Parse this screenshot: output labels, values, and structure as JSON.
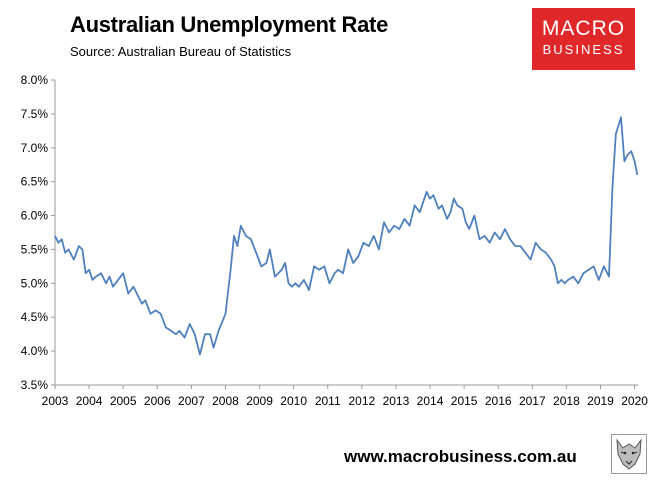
{
  "title": "Australian Unemployment Rate",
  "subtitle": "Source: Australian Bureau of Statistics",
  "logo": {
    "line1": "MACRO",
    "line2": "BUSINESS"
  },
  "footer_url": "www.macrobusiness.com.au",
  "colors": {
    "line": "#4f81bd",
    "logo_bg": "#e0282b"
  },
  "chart_data": {
    "type": "line",
    "title": "Australian Unemployment Rate",
    "xlabel": "",
    "ylabel": "",
    "xlim": [
      2003,
      2020.1
    ],
    "ylim": [
      3.5,
      8.0
    ],
    "y_ticks": [
      3.5,
      4.0,
      4.5,
      5.0,
      5.5,
      6.0,
      6.5,
      7.0,
      7.5,
      8.0
    ],
    "y_tick_labels": [
      "3.5%",
      "4.0%",
      "4.5%",
      "5.0%",
      "5.5%",
      "6.0%",
      "6.5%",
      "7.0%",
      "7.5%",
      "8.0%"
    ],
    "x_ticks": [
      2003,
      2004,
      2005,
      2006,
      2007,
      2008,
      2009,
      2010,
      2011,
      2012,
      2013,
      2014,
      2015,
      2016,
      2017,
      2018,
      2019,
      2020
    ],
    "x_tick_labels": [
      "2003",
      "2004",
      "2005",
      "2006",
      "2007",
      "2008",
      "2009",
      "2010",
      "2011",
      "2012",
      "2013",
      "2014",
      "2015",
      "2016",
      "2017",
      "2018",
      "2019",
      "2020"
    ],
    "grid": false,
    "series": [
      {
        "x": [
          2003.0,
          2003.1,
          2003.2,
          2003.3,
          2003.4,
          2003.55,
          2003.7,
          2003.8,
          2003.9,
          2004.0,
          2004.1,
          2004.2,
          2004.35,
          2004.5,
          2004.6,
          2004.7,
          2004.85,
          2005.0,
          2005.15,
          2005.3,
          2005.45,
          2005.55,
          2005.65,
          2005.8,
          2005.95,
          2006.1,
          2006.25,
          2006.4,
          2006.55,
          2006.65,
          2006.8,
          2006.95,
          2007.1,
          2007.25,
          2007.4,
          2007.55,
          2007.65,
          2007.8,
          2008.0,
          2008.15,
          2008.25,
          2008.35,
          2008.45,
          2008.6,
          2008.75,
          2008.9,
          2009.05,
          2009.2,
          2009.3,
          2009.45,
          2009.55,
          2009.65,
          2009.75,
          2009.85,
          2009.95,
          2010.05,
          2010.15,
          2010.3,
          2010.45,
          2010.6,
          2010.75,
          2010.9,
          2011.05,
          2011.2,
          2011.3,
          2011.45,
          2011.6,
          2011.75,
          2011.9,
          2012.05,
          2012.2,
          2012.35,
          2012.5,
          2012.65,
          2012.8,
          2012.95,
          2013.1,
          2013.25,
          2013.4,
          2013.55,
          2013.7,
          2013.8,
          2013.9,
          2014.0,
          2014.1,
          2014.25,
          2014.35,
          2014.5,
          2014.6,
          2014.7,
          2014.8,
          2014.95,
          2015.05,
          2015.15,
          2015.3,
          2015.45,
          2015.6,
          2015.75,
          2015.9,
          2016.05,
          2016.2,
          2016.35,
          2016.5,
          2016.65,
          2016.8,
          2016.95,
          2017.1,
          2017.25,
          2017.4,
          2017.55,
          2017.65,
          2017.75,
          2017.85,
          2017.95,
          2018.05,
          2018.2,
          2018.35,
          2018.5,
          2018.65,
          2018.8,
          2018.95,
          2019.1,
          2019.25,
          2019.35,
          2019.45,
          2019.6,
          2019.7,
          2019.8,
          2019.9,
          2020.0,
          2020.08
        ],
        "y": [
          5.7,
          5.6,
          5.65,
          5.45,
          5.5,
          5.35,
          5.55,
          5.5,
          5.15,
          5.2,
          5.05,
          5.1,
          5.15,
          5.0,
          5.1,
          4.95,
          5.05,
          5.15,
          4.85,
          4.95,
          4.8,
          4.7,
          4.75,
          4.55,
          4.6,
          4.55,
          4.35,
          4.3,
          4.25,
          4.3,
          4.2,
          4.4,
          4.25,
          3.95,
          4.25,
          4.25,
          4.05,
          4.3,
          4.55,
          5.2,
          5.7,
          5.55,
          5.85,
          5.7,
          5.65,
          5.45,
          5.25,
          5.3,
          5.5,
          5.1,
          5.15,
          5.2,
          5.3,
          5.0,
          4.95,
          5.0,
          4.95,
          5.05,
          4.9,
          5.25,
          5.2,
          5.25,
          5.0,
          5.15,
          5.2,
          5.15,
          5.5,
          5.3,
          5.4,
          5.6,
          5.55,
          5.7,
          5.5,
          5.9,
          5.75,
          5.85,
          5.8,
          5.95,
          5.85,
          6.15,
          6.05,
          6.2,
          6.35,
          6.25,
          6.3,
          6.1,
          6.15,
          5.95,
          6.05,
          6.25,
          6.15,
          6.1,
          5.9,
          5.8,
          6.0,
          5.65,
          5.7,
          5.6,
          5.75,
          5.65,
          5.8,
          5.65,
          5.55,
          5.55,
          5.45,
          5.35,
          5.6,
          5.5,
          5.45,
          5.35,
          5.25,
          5.0,
          5.05,
          5.0,
          5.05,
          5.1,
          5.0,
          5.15,
          5.2,
          5.25,
          5.05,
          5.25,
          5.1,
          6.4,
          7.2,
          7.45,
          6.8,
          6.9,
          6.95,
          6.8,
          6.6
        ]
      }
    ]
  }
}
